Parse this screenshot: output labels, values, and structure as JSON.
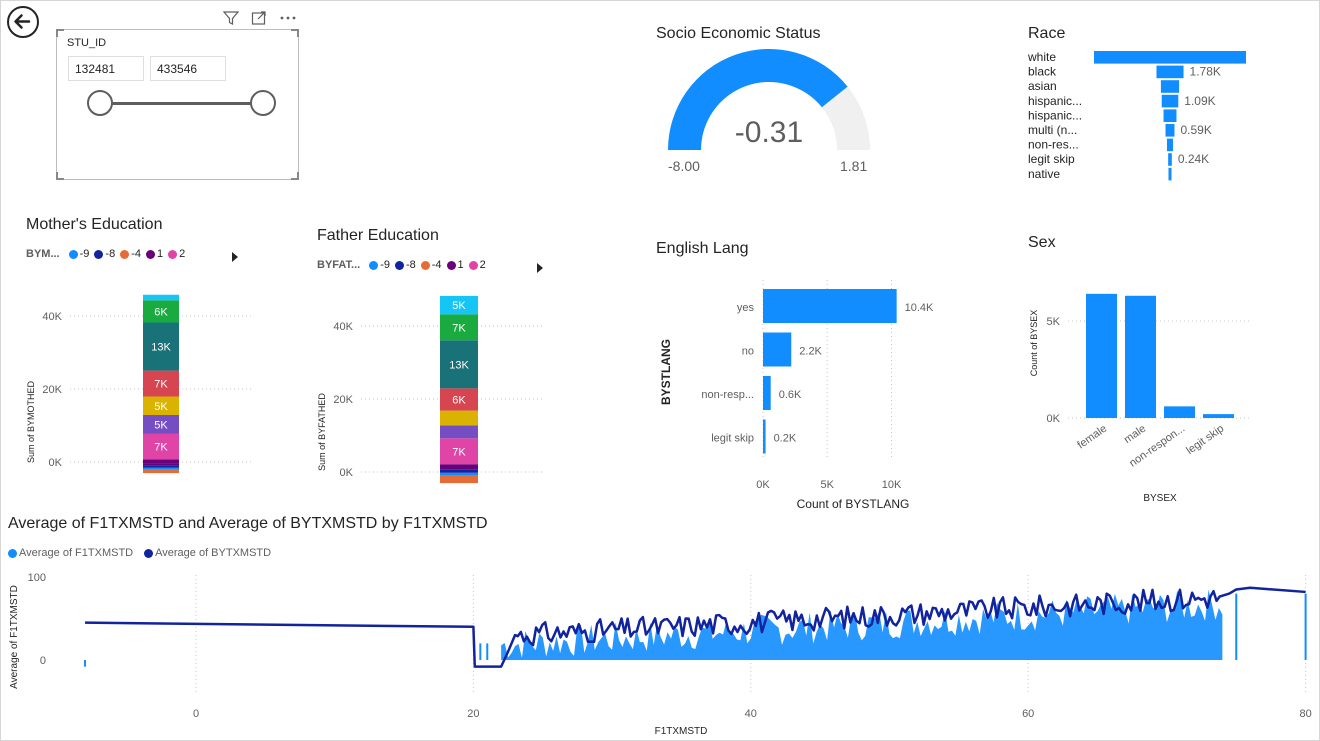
{
  "colors": {
    "accent": "#118DFF",
    "dark_blue": "#12239E",
    "orange": "#E66C37",
    "purple": "#6B007B",
    "pink": "#E044A7",
    "teal": "#197278",
    "green": "#1AAB40",
    "red": "#D64550",
    "yellow": "#D9B300",
    "violet": "#744EC2",
    "cyan": "#15C6F4",
    "gauge_bg": "#F0F0F0"
  },
  "header": {
    "back_icon": "back-arrow-icon",
    "filter_icon": "filter-icon",
    "focus_icon": "focus-mode-icon",
    "more_icon": "more-options-icon"
  },
  "slicer": {
    "title": "STU_ID",
    "min_value": "132481",
    "max_value": "433546"
  },
  "gauge": {
    "title": "Socio Economic Status",
    "value_label": "-0.31",
    "min_label": "-8.00",
    "max_label": "1.81",
    "min": -8.0,
    "max": 1.81,
    "value": -0.31
  },
  "race": {
    "title": "Race",
    "categories": [
      "white",
      "black",
      "asian",
      "hispanic...",
      "hispanic...",
      "multi (n...",
      "non-res...",
      "legit skip",
      "native"
    ],
    "values": [
      10.0,
      1.78,
      1.2,
      1.09,
      0.85,
      0.59,
      0.4,
      0.24,
      0.1
    ],
    "labels": [
      "",
      "1.78K",
      "",
      "1.09K",
      "",
      "0.59K",
      "",
      "0.24K",
      ""
    ]
  },
  "mother": {
    "title": "Mother's Education",
    "legend_label": "BYM...",
    "legend_items": [
      "-9",
      "-8",
      "-4",
      "1",
      "2"
    ],
    "ylabel": "Sum of BYMOTHED",
    "yticks": [
      "40K",
      "20K",
      "0K"
    ],
    "segments": [
      {
        "value": 1.0,
        "color": "#E66C37",
        "label": ""
      },
      {
        "value": 0.5,
        "color": "#118DFF",
        "label": ""
      },
      {
        "value": 0.6,
        "color": "#12239E",
        "label": ""
      },
      {
        "value": 0.6,
        "color": "#6B007B",
        "label": ""
      },
      {
        "value": 1.0,
        "color": "#6B007B",
        "label": ""
      },
      {
        "value": 7.0,
        "color": "#E044A7",
        "label": "7K"
      },
      {
        "value": 5.0,
        "color": "#744EC2",
        "label": "5K"
      },
      {
        "value": 5.0,
        "color": "#D9B300",
        "label": "5K"
      },
      {
        "value": 7.0,
        "color": "#D64550",
        "label": "7K"
      },
      {
        "value": 13.0,
        "color": "#197278",
        "label": "13K"
      },
      {
        "value": 6.0,
        "color": "#1AAB40",
        "label": "6K"
      },
      {
        "value": 1.5,
        "color": "#15C6F4",
        "label": ""
      }
    ]
  },
  "father": {
    "title": "Father Education",
    "legend_label": "BYFAT...",
    "legend_items": [
      "-9",
      "-8",
      "-4",
      "1",
      "2"
    ],
    "ylabel": "Sum of BYFATHED",
    "yticks": [
      "40K",
      "20K",
      "0K"
    ],
    "segments": [
      {
        "value": 2.0,
        "color": "#E66C37",
        "label": ""
      },
      {
        "value": 0.8,
        "color": "#118DFF",
        "label": ""
      },
      {
        "value": 0.8,
        "color": "#12239E",
        "label": ""
      },
      {
        "value": 1.5,
        "color": "#6B007B",
        "label": ""
      },
      {
        "value": 7.0,
        "color": "#E044A7",
        "label": "7K"
      },
      {
        "value": 3.5,
        "color": "#744EC2",
        "label": ""
      },
      {
        "value": 4.0,
        "color": "#D9B300",
        "label": ""
      },
      {
        "value": 6.0,
        "color": "#D64550",
        "label": "6K"
      },
      {
        "value": 13.0,
        "color": "#197278",
        "label": "13K"
      },
      {
        "value": 7.0,
        "color": "#1AAB40",
        "label": "7K"
      },
      {
        "value": 5.0,
        "color": "#15C6F4",
        "label": "5K"
      }
    ]
  },
  "english": {
    "title": "English Lang",
    "ylabel": "BYSTLANG",
    "xlabel": "Count of BYSTLANG",
    "categories": [
      "yes",
      "no",
      "non-resp...",
      "legit skip"
    ],
    "values": [
      10.4,
      2.2,
      0.6,
      0.2
    ],
    "labels": [
      "10.4K",
      "2.2K",
      "0.6K",
      "0.2K"
    ],
    "xticks": [
      "0K",
      "5K",
      "10K"
    ]
  },
  "sex": {
    "title": "Sex",
    "ylabel": "Count of BYSEX",
    "xlabel": "BYSEX",
    "categories": [
      "female",
      "male",
      "non-respon...",
      "legit skip"
    ],
    "values": [
      6.4,
      6.3,
      0.6,
      0.2
    ],
    "yticks": [
      "5K",
      "0K"
    ]
  },
  "line": {
    "title": "Average of F1TXMSTD and Average of BYTXMSTD by F1TXMSTD",
    "legend": [
      "Average of F1TXMSTD",
      "Average of BYTXMSTD"
    ],
    "ylabel": "Average of F1TXMSTD",
    "xlabel": "F1TXMSTD",
    "yticks": [
      "100",
      "0"
    ],
    "xticks": [
      "0",
      "20",
      "40",
      "60",
      "80"
    ]
  },
  "chart_data": [
    {
      "type": "bar",
      "title": "Race",
      "categories": [
        "white",
        "black",
        "asian",
        "hispanic...",
        "hispanic...",
        "multi (n...",
        "non-res...",
        "legit skip",
        "native"
      ],
      "values": [
        10000,
        1780,
        1200,
        1090,
        850,
        590,
        400,
        240,
        100
      ]
    },
    {
      "type": "bar",
      "title": "English Lang",
      "xlabel": "Count of BYSTLANG",
      "ylabel": "BYSTLANG",
      "categories": [
        "yes",
        "no",
        "non-resp...",
        "legit skip"
      ],
      "values": [
        10400,
        2200,
        600,
        200
      ]
    },
    {
      "type": "bar",
      "title": "Sex",
      "xlabel": "BYSEX",
      "ylabel": "Count of BYSEX",
      "categories": [
        "female",
        "male",
        "non-respon...",
        "legit skip"
      ],
      "values": [
        6400,
        6300,
        600,
        200
      ]
    },
    {
      "type": "line",
      "title": "Average of F1TXMSTD and Average of BYTXMSTD by F1TXMSTD",
      "xlabel": "F1TXMSTD",
      "ylabel": "Average of F1TXMSTD",
      "x": [
        -8,
        20,
        20.1,
        22,
        24,
        30,
        40,
        50,
        60,
        70,
        74,
        75,
        76,
        80
      ],
      "series": [
        {
          "name": "Average of BYTXMSTD",
          "values": [
            45,
            40,
            -8,
            -8,
            30,
            40,
            45,
            52,
            60,
            68,
            75,
            80,
            85,
            82
          ]
        }
      ]
    }
  ]
}
